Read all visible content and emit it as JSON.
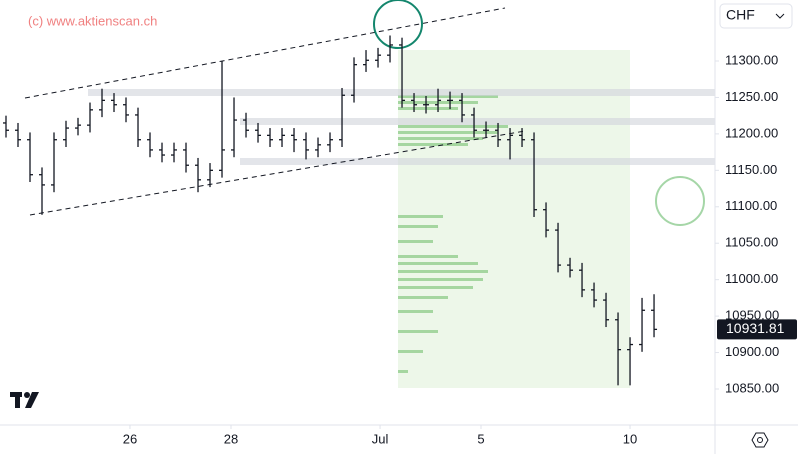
{
  "chart_data": {
    "type": "ohlc",
    "watermark": "(c) www.aktienscan.ch",
    "currency": "CHF",
    "color": "#131722",
    "x": [
      0,
      1,
      2,
      3,
      4,
      5,
      6,
      7,
      8,
      9,
      10,
      11,
      12,
      13,
      14,
      15,
      16,
      17,
      18,
      19,
      20,
      21,
      22,
      23,
      24,
      25,
      26,
      27,
      28,
      29,
      30,
      31,
      32,
      33,
      34,
      35,
      36,
      37,
      38,
      39,
      40,
      41,
      42,
      43,
      44,
      45,
      46,
      47,
      48,
      49,
      50,
      51,
      52,
      53,
      54
    ],
    "open": [
      11215,
      11205,
      11192,
      11144,
      11130,
      11192,
      11208,
      11212,
      11233,
      11246,
      11240,
      11226,
      11192,
      11178,
      11171,
      11178,
      11157,
      11137,
      11150,
      11178,
      11219,
      11205,
      11198,
      11192,
      11198,
      11192,
      11178,
      11185,
      11192,
      11253,
      11295,
      11301,
      11308,
      11322,
      11246,
      11240,
      11240,
      11246,
      11246,
      11226,
      11205,
      11205,
      11192,
      11198,
      11192,
      11096,
      11068,
      11020,
      11013,
      10986,
      10972,
      10945,
      10904,
      10911,
      10958
    ],
    "high": [
      11225,
      11215,
      11202,
      11154,
      11202,
      11218,
      11222,
      11243,
      11262,
      11256,
      11250,
      11236,
      11202,
      11188,
      11188,
      11188,
      11167,
      11160,
      11300,
      11250,
      11229,
      11215,
      11208,
      11208,
      11208,
      11202,
      11195,
      11202,
      11263,
      11305,
      11315,
      11318,
      11335,
      11332,
      11256,
      11252,
      11262,
      11258,
      11256,
      11236,
      11217,
      11215,
      11208,
      11208,
      11202,
      11106,
      11078,
      11030,
      11023,
      10996,
      10982,
      10955,
      10921,
      10975,
      10980
    ],
    "low": [
      11195,
      11182,
      11134,
      11089,
      11120,
      11182,
      11198,
      11202,
      11223,
      11230,
      11216,
      11182,
      11168,
      11161,
      11161,
      11147,
      11120,
      11127,
      11140,
      11168,
      11195,
      11188,
      11182,
      11182,
      11175,
      11165,
      11168,
      11175,
      11182,
      11243,
      11285,
      11291,
      11298,
      11236,
      11230,
      11228,
      11230,
      11234,
      11216,
      11195,
      11195,
      11182,
      11165,
      11182,
      11086,
      11058,
      11010,
      11003,
      10976,
      10962,
      10935,
      10855,
      10855,
      10901,
      10921
    ],
    "close": [
      11205,
      11192,
      11144,
      11130,
      11192,
      11208,
      11212,
      11233,
      11246,
      11240,
      11226,
      11192,
      11178,
      11171,
      11178,
      11157,
      11137,
      11150,
      11178,
      11219,
      11205,
      11198,
      11192,
      11198,
      11192,
      11178,
      11185,
      11192,
      11253,
      11295,
      11301,
      11308,
      11322,
      11246,
      11240,
      11240,
      11246,
      11246,
      11226,
      11205,
      11205,
      11192,
      11198,
      11192,
      11096,
      11068,
      11020,
      11013,
      10986,
      10972,
      10945,
      10904,
      10911,
      10958,
      10931.81
    ],
    "xlim": [
      -0.5,
      59.08
    ],
    "xticks": [
      {
        "value": 10.33,
        "label": "26"
      },
      {
        "value": 18.75,
        "label": "28"
      },
      {
        "value": 31.17,
        "label": "Jul"
      },
      {
        "value": 39.58,
        "label": "5"
      },
      {
        "value": 52,
        "label": "10"
      }
    ],
    "ylim": [
      10800.6,
      11383.7
    ],
    "yticks": [
      {
        "value": 10850,
        "label": "10850.00"
      },
      {
        "value": 10900,
        "label": "10900.00"
      },
      {
        "value": 10950,
        "label": "10950.00"
      },
      {
        "value": 11000,
        "label": "11000.00"
      },
      {
        "value": 11050,
        "label": "11050.00"
      },
      {
        "value": 11100,
        "label": "11100.00"
      },
      {
        "value": 11150,
        "label": "11150.00"
      },
      {
        "value": 11200,
        "label": "11200.00"
      },
      {
        "value": 11250,
        "label": "11250.00"
      },
      {
        "value": 11300,
        "label": "11300.00"
      }
    ]
  }
}
